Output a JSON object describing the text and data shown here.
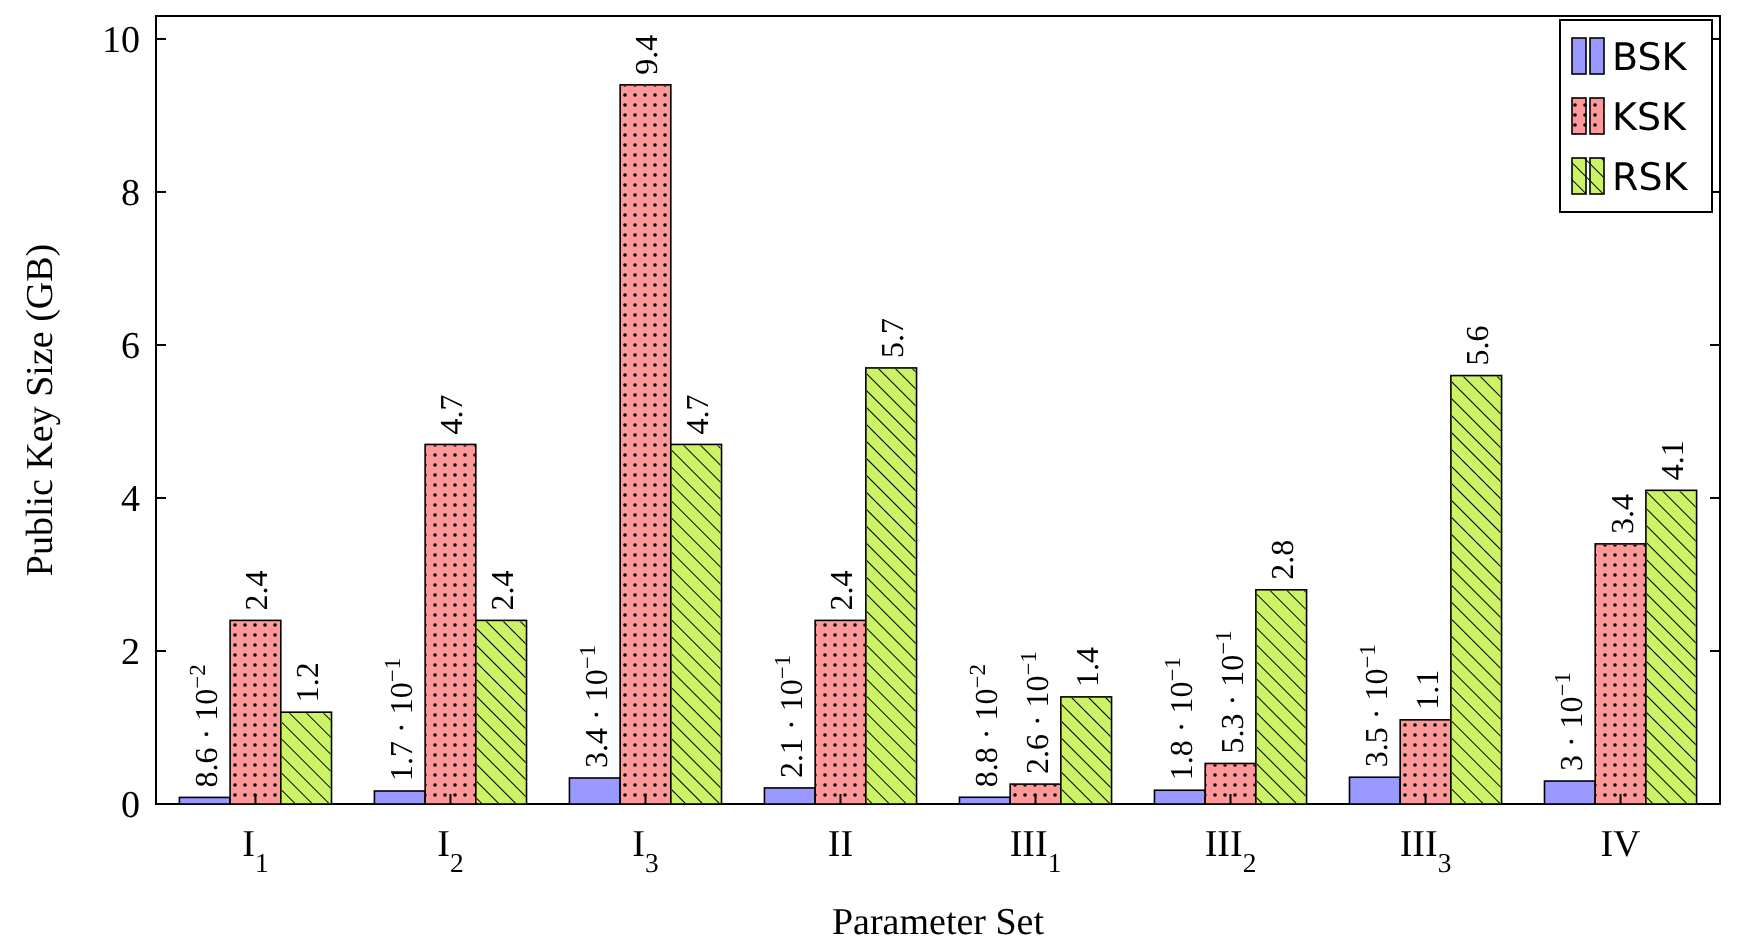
{
  "chart_data": {
    "type": "bar",
    "xlabel": "Parameter Set",
    "ylabel": "Public Key Size (GB)",
    "categories": [
      "I$_{1}$",
      "I$_{2}$",
      "I$_{3}$",
      "II",
      "III$_{1}$",
      "III$_{2}$",
      "III$_{3}$",
      "IV"
    ],
    "ylim": [
      0,
      10.3
    ],
    "yticks": [
      0,
      2,
      4,
      6,
      8,
      10
    ],
    "grid": false,
    "legend": "top right",
    "series": [
      {
        "name": "BSK",
        "color": "#9999ff",
        "values": [
          0.086,
          0.17,
          0.34,
          0.21,
          0.088,
          0.18,
          0.35,
          0.3
        ],
        "value_labels": [
          "8.6 · 10$^{−2}$",
          "1.7 · 10$^{−1}$",
          "3.4 · 10$^{−1}$",
          "2.1 · 10$^{−1}$",
          "8.8 · 10$^{−2}$",
          "1.8 · 10$^{−1}$",
          "3.5 · 10$^{−1}$",
          "3 · 10$^{−1}$"
        ]
      },
      {
        "name": "KSK",
        "color": "#ff9999",
        "values": [
          2.4,
          4.7,
          9.4,
          2.4,
          0.26,
          0.53,
          1.1,
          3.4
        ],
        "value_labels": [
          "2.4",
          "4.7",
          "9.4",
          "2.4",
          "2.6 · 10$^{−1}$",
          "5.3 · 10$^{−1}$",
          "1.1",
          "3.4"
        ]
      },
      {
        "name": "RSK",
        "color": "#ccf266",
        "values": [
          1.2,
          2.4,
          4.7,
          5.7,
          1.4,
          2.8,
          5.6,
          4.1
        ],
        "value_labels": [
          "1.2",
          "2.4",
          "4.7",
          "5.7",
          "1.4",
          "2.8",
          "5.6",
          "4.1"
        ]
      }
    ]
  }
}
